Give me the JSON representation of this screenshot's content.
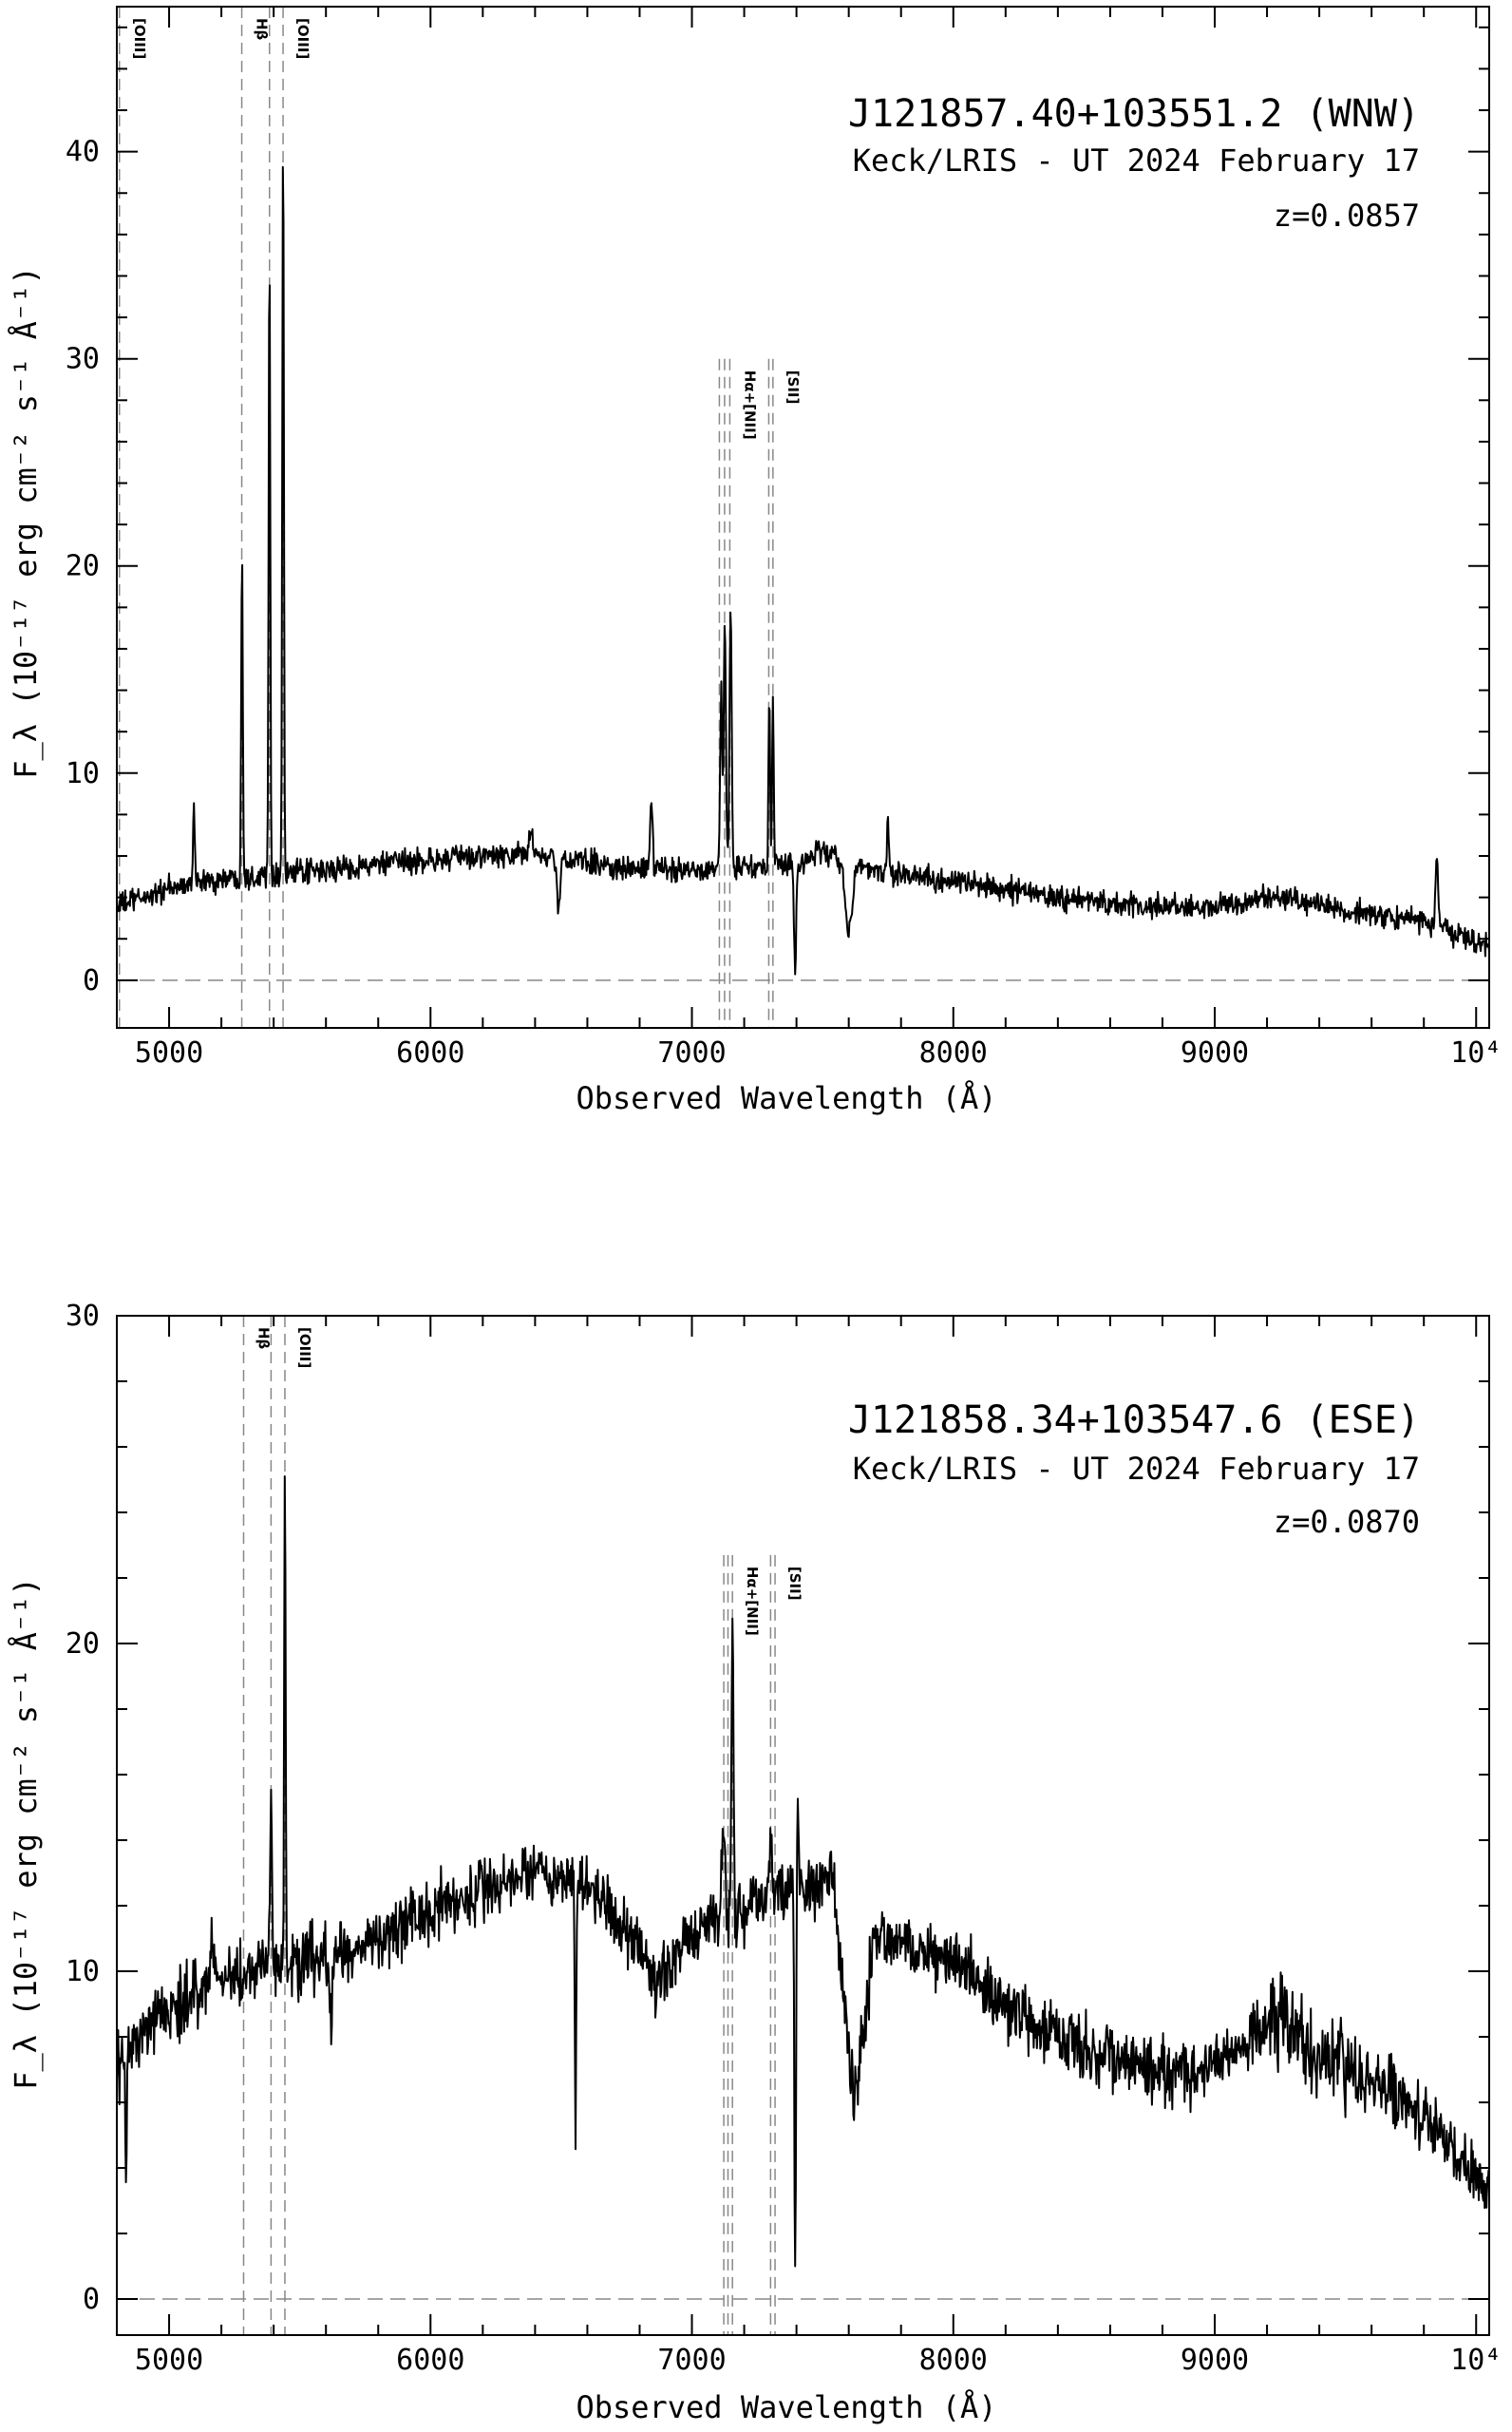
{
  "chart_data": [
    {
      "type": "line",
      "title": "J121857.40+103551.2 (WNW)",
      "subtitle": "Keck/LRIS - UT 2024 February 17",
      "redshift_label": "z=0.0857",
      "xlabel": "Observed Wavelength (Å)",
      "ylabel": "F_λ (10⁻¹⁷ erg cm⁻² s⁻¹ Å⁻¹)",
      "xlim": [
        4800,
        10050
      ],
      "ylim": [
        -2.3,
        47
      ],
      "x_ticks": [
        5000,
        6000,
        7000,
        8000,
        9000,
        10000
      ],
      "x_tick_labels": [
        "5000",
        "6000",
        "7000",
        "8000",
        "9000",
        "10⁴"
      ],
      "y_ticks": [
        0,
        10,
        20,
        30,
        40
      ],
      "y_tick_labels": [
        "0",
        "10",
        "20",
        "30",
        "40"
      ],
      "zero_line": true,
      "line_markers": [
        {
          "label": "[OIII]",
          "x": [
            4810
          ]
        },
        {
          "label": "Hβ",
          "x": [
            5278
          ]
        },
        {
          "label": "[OIII]",
          "x": [
            5384,
            5436
          ]
        },
        {
          "label": "Hα+[NII]",
          "x": [
            7105,
            7125,
            7145
          ]
        },
        {
          "label": "[SII]",
          "x": [
            7294,
            7310
          ]
        }
      ],
      "continuum": [
        [
          4800,
          3.6
        ],
        [
          5000,
          4.4
        ],
        [
          5200,
          4.9
        ],
        [
          5400,
          5.1
        ],
        [
          5600,
          5.3
        ],
        [
          5800,
          5.6
        ],
        [
          6000,
          5.8
        ],
        [
          6200,
          6.0
        ],
        [
          6400,
          6.0
        ],
        [
          6600,
          5.7
        ],
        [
          6800,
          5.3
        ],
        [
          7000,
          5.4
        ],
        [
          7200,
          5.4
        ],
        [
          7400,
          5.6
        ],
        [
          7500,
          6.3
        ],
        [
          7600,
          5.6
        ],
        [
          7800,
          5.1
        ],
        [
          8000,
          4.8
        ],
        [
          8200,
          4.4
        ],
        [
          8400,
          4.0
        ],
        [
          8600,
          3.7
        ],
        [
          8800,
          3.5
        ],
        [
          9000,
          3.5
        ],
        [
          9200,
          4.0
        ],
        [
          9300,
          4.0
        ],
        [
          9500,
          3.3
        ],
        [
          9700,
          3.0
        ],
        [
          9900,
          2.4
        ],
        [
          10050,
          1.7
        ]
      ],
      "features": [
        {
          "x": 5095,
          "height": 3.5,
          "width": 4
        },
        {
          "x": 5279,
          "height": 15.8,
          "width": 3
        },
        {
          "x": 5384,
          "height": 30.8,
          "width": 3
        },
        {
          "x": 5436,
          "height": 36.0,
          "width": 3
        },
        {
          "x": 6385,
          "height": 1.3,
          "width": 8
        },
        {
          "x": 6490,
          "height": -2.6,
          "width": 6
        },
        {
          "x": 6845,
          "height": 3.2,
          "width": 5
        },
        {
          "x": 7112,
          "height": 8.5,
          "width": 4
        },
        {
          "x": 7126,
          "height": 12.0,
          "width": 4
        },
        {
          "x": 7148,
          "height": 13.0,
          "width": 4
        },
        {
          "x": 7296,
          "height": 8.3,
          "width": 3
        },
        {
          "x": 7310,
          "height": 8.2,
          "width": 3
        },
        {
          "x": 7395,
          "height": -5.6,
          "width": 4
        },
        {
          "x": 7600,
          "height": -3.0,
          "width": 14
        },
        {
          "x": 7750,
          "height": 2.6,
          "width": 4
        },
        {
          "x": 9850,
          "height": 3.5,
          "width": 5
        }
      ],
      "noise": 0.45
    },
    {
      "type": "line",
      "title": "J121858.34+103547.6 (ESE)",
      "subtitle": "Keck/LRIS - UT 2024 February 17",
      "redshift_label": "z=0.0870",
      "xlabel": "Observed Wavelength (Å)",
      "ylabel": "F_λ (10⁻¹⁷ erg cm⁻² s⁻¹ Å⁻¹)",
      "xlim": [
        4800,
        10050
      ],
      "ylim": [
        -1.1,
        30
      ],
      "x_ticks": [
        5000,
        6000,
        7000,
        8000,
        9000,
        10000
      ],
      "x_tick_labels": [
        "5000",
        "6000",
        "7000",
        "8000",
        "9000",
        "10⁴"
      ],
      "y_ticks": [
        0,
        10,
        20,
        30
      ],
      "y_tick_labels": [
        "0",
        "10",
        "20",
        "30"
      ],
      "zero_line": true,
      "line_markers": [
        {
          "label": "Hβ",
          "x": [
            5285
          ]
        },
        {
          "label": "[OIII]",
          "x": [
            5390,
            5443
          ]
        },
        {
          "label": "Hα+[NII]",
          "x": [
            7122,
            7138,
            7155
          ]
        },
        {
          "label": "[SII]",
          "x": [
            7301,
            7318
          ]
        }
      ],
      "continuum": [
        [
          4800,
          7.2
        ],
        [
          4900,
          8.0
        ],
        [
          5100,
          9.4
        ],
        [
          5300,
          10.0
        ],
        [
          5500,
          10.2
        ],
        [
          5700,
          10.6
        ],
        [
          5900,
          11.5
        ],
        [
          6100,
          12.2
        ],
        [
          6300,
          12.7
        ],
        [
          6500,
          12.9
        ],
        [
          6600,
          12.7
        ],
        [
          6700,
          11.8
        ],
        [
          6800,
          10.6
        ],
        [
          6850,
          9.3
        ],
        [
          6950,
          10.6
        ],
        [
          7050,
          11.6
        ],
        [
          7200,
          11.9
        ],
        [
          7400,
          12.6
        ],
        [
          7540,
          12.8
        ],
        [
          7580,
          9.0
        ],
        [
          7620,
          6.0
        ],
        [
          7700,
          11.0
        ],
        [
          7900,
          10.6
        ],
        [
          8100,
          9.7
        ],
        [
          8300,
          8.4
        ],
        [
          8500,
          7.6
        ],
        [
          8700,
          7.1
        ],
        [
          8900,
          6.8
        ],
        [
          9000,
          7.2
        ],
        [
          9150,
          8.0
        ],
        [
          9250,
          8.8
        ],
        [
          9300,
          7.9
        ],
        [
          9500,
          7.0
        ],
        [
          9700,
          6.2
        ],
        [
          9850,
          5.2
        ],
        [
          10000,
          3.6
        ],
        [
          10050,
          3.1
        ]
      ],
      "features": [
        {
          "x": 4835,
          "height": -4.0,
          "width": 3
        },
        {
          "x": 5165,
          "height": 1.8,
          "width": 5
        },
        {
          "x": 5390,
          "height": 4.8,
          "width": 4
        },
        {
          "x": 5443,
          "height": 15.3,
          "width": 3
        },
        {
          "x": 5620,
          "height": -2.2,
          "width": 5
        },
        {
          "x": 6555,
          "height": -7.2,
          "width": 3
        },
        {
          "x": 7120,
          "height": 3.0,
          "width": 6
        },
        {
          "x": 7155,
          "height": 8.4,
          "width": 4
        },
        {
          "x": 7304,
          "height": 2.0,
          "width": 4
        },
        {
          "x": 7395,
          "height": -12.0,
          "width": 3
        },
        {
          "x": 7405,
          "height": 2.0,
          "width": 3
        }
      ],
      "noise": 0.75
    }
  ]
}
